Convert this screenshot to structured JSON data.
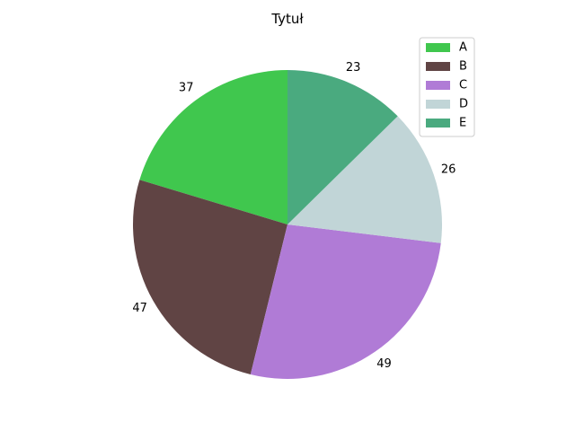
{
  "chart_data": {
    "type": "pie",
    "title": "Tytuł",
    "categories": [
      "A",
      "B",
      "C",
      "D",
      "E"
    ],
    "values": [
      37,
      47,
      49,
      26,
      23
    ],
    "colors": [
      "#40c74e",
      "#604444",
      "#b07bd6",
      "#c1d5d7",
      "#4aaa7f"
    ],
    "start_angle_deg": 90,
    "direction": "counterclockwise",
    "legend": {
      "position": "top-right"
    }
  }
}
